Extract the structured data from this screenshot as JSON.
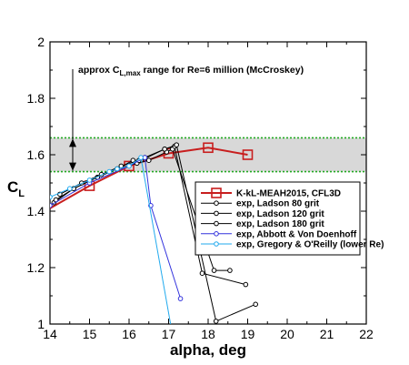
{
  "chart_data": {
    "type": "line",
    "xlabel": "alpha, deg",
    "ylabel": "C",
    "ylabel_sub": "L",
    "xlim": [
      14,
      22
    ],
    "ylim": [
      1.0,
      2.0
    ],
    "xticks": [
      "14",
      "15",
      "16",
      "17",
      "18",
      "19",
      "20",
      "21",
      "22"
    ],
    "yticks": [
      "1",
      "1.2",
      "1.4",
      "1.6",
      "1.8",
      "2"
    ],
    "band": {
      "low": 1.54,
      "high": 1.66,
      "color": "#d8d8d8",
      "edge_color": "#22aa22"
    },
    "annotation": {
      "text_pre": "approx C",
      "text_sub": "L,max",
      "text_post": " range for Re=6 million (McCroskey)"
    },
    "series": [
      {
        "name": "K-kL-MEAH2015, CFL3D",
        "color": "#c81e1e",
        "marker": "square",
        "x": [
          14,
          15,
          16,
          17,
          18,
          19
        ],
        "y": [
          1.41,
          1.49,
          1.56,
          1.605,
          1.625,
          1.6
        ],
        "marked": [
          false,
          true,
          true,
          true,
          true,
          true
        ]
      },
      {
        "name": "exp, Ladson 80 grit",
        "color": "#000000",
        "marker": "circle",
        "x": [
          14.1,
          14.6,
          15.2,
          15.7,
          16.2,
          16.5,
          16.95,
          17.1,
          18.15,
          18.55
        ],
        "y": [
          1.43,
          1.48,
          1.52,
          1.55,
          1.57,
          1.58,
          1.61,
          1.62,
          1.19,
          1.19
        ]
      },
      {
        "name": "exp, Ladson 120 grit",
        "color": "#000000",
        "marker": "circle",
        "x": [
          14.15,
          14.6,
          15.2,
          15.7,
          16.1,
          16.3,
          16.9,
          17.15,
          17.85,
          18.95
        ],
        "y": [
          1.44,
          1.48,
          1.52,
          1.55,
          1.58,
          1.58,
          1.62,
          1.63,
          1.18,
          1.14
        ]
      },
      {
        "name": "exp, Ladson 180 grit",
        "color": "#000000",
        "marker": "circle",
        "x": [
          14.25,
          14.8,
          15.3,
          15.8,
          16.25,
          16.4,
          16.9,
          17.2,
          18.2,
          19.2
        ],
        "y": [
          1.46,
          1.5,
          1.53,
          1.56,
          1.58,
          1.59,
          1.62,
          1.635,
          1.01,
          1.07
        ]
      },
      {
        "name": "exp, Abbott & Von Doenhoff",
        "color": "#3333dd",
        "marker": "circle",
        "x": [
          14.0,
          15.0,
          16.0,
          16.4,
          16.55,
          17.3
        ],
        "y": [
          1.42,
          1.5,
          1.56,
          1.59,
          1.42,
          1.09
        ]
      },
      {
        "name": "exp, Gregory & O'Reilly (lower Re)",
        "color": "#22aaee",
        "marker": "circle",
        "x": [
          14.0,
          14.5,
          15.0,
          15.5,
          15.7,
          16.0,
          16.3
        ],
        "y": [
          1.45,
          1.48,
          1.51,
          1.54,
          1.55,
          1.56,
          1.59
        ],
        "drop_to": [
          17.05,
          1.0
        ]
      }
    ]
  }
}
